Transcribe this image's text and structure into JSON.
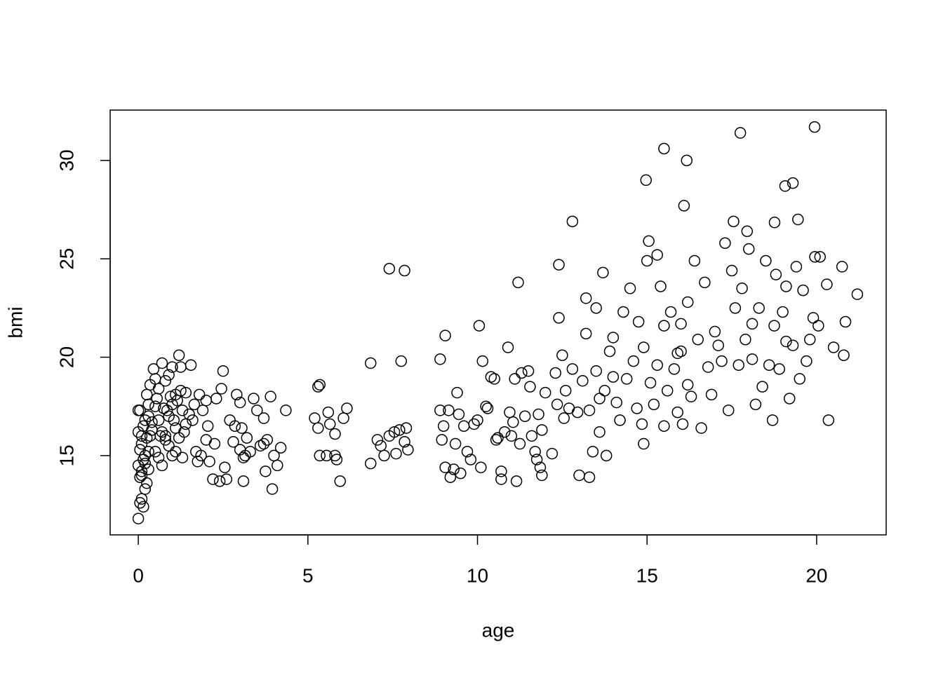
{
  "chart_data": {
    "type": "scatter",
    "x_label": "age",
    "y_label": "bmi",
    "color": "#000000",
    "xlim": [
      -0.83,
      22.05
    ],
    "ylim": [
      10.97,
      32.56
    ],
    "xticks": [
      0,
      5,
      10,
      15,
      20
    ],
    "yticks": [
      15,
      20,
      25,
      30
    ],
    "x": [
      0.0,
      0.05,
      0.1,
      0.15,
      0.2,
      0.25,
      0.05,
      0.1,
      0.0,
      0.15,
      0.2,
      0.05,
      0.1,
      0.25,
      0.0,
      0.15,
      0.2,
      0.05,
      0.3,
      0.25,
      0.35,
      0.1,
      0.3,
      0.2,
      0.3,
      0.35,
      0.4,
      0.3,
      0.0,
      0.1,
      0.45,
      0.5,
      0.6,
      0.7,
      0.8,
      0.9,
      1.0,
      1.1,
      1.2,
      1.25,
      0.5,
      0.6,
      0.7,
      0.8,
      0.9,
      1.0,
      1.1,
      1.2,
      1.3,
      1.4,
      0.5,
      0.6,
      0.7,
      0.8,
      0.9,
      1.0,
      1.1,
      1.3,
      1.4,
      1.5,
      0.4,
      0.55,
      0.75,
      0.95,
      1.15,
      1.35,
      0.65,
      0.85,
      1.05,
      1.25,
      1.55,
      1.6,
      1.7,
      1.8,
      1.9,
      2.0,
      2.1,
      2.2,
      2.3,
      2.4,
      2.5,
      2.45,
      2.55,
      2.6,
      2.7,
      2.8,
      2.9,
      3.0,
      3.05,
      3.1,
      3.15,
      3.2,
      3.3,
      3.4,
      3.5,
      3.6,
      3.7,
      3.75,
      3.8,
      3.9,
      3.95,
      4.0,
      4.1,
      4.2,
      4.35,
      1.65,
      1.85,
      2.05,
      2.25,
      2.85,
      3.0,
      3.1,
      3.7,
      2.0,
      1.75,
      5.2,
      5.3,
      5.35,
      5.3,
      5.35,
      5.55,
      5.6,
      5.65,
      5.8,
      5.8,
      5.85,
      5.95,
      6.05,
      6.15,
      6.85,
      6.85,
      7.05,
      7.15,
      7.25,
      7.4,
      7.4,
      7.55,
      7.6,
      7.7,
      7.75,
      7.85,
      7.85,
      7.9,
      7.95,
      8.9,
      8.9,
      8.95,
      9.0,
      9.05,
      9.05,
      9.15,
      9.2,
      9.3,
      9.35,
      9.4,
      9.45,
      9.5,
      9.6,
      9.7,
      9.8,
      9.9,
      10.0,
      10.05,
      10.1,
      10.15,
      10.3,
      10.4,
      10.5,
      10.55,
      10.6,
      10.7,
      10.7,
      10.8,
      10.9,
      10.95,
      11.0,
      11.1,
      11.15,
      11.2,
      11.25,
      11.3,
      11.4,
      11.5,
      11.55,
      11.6,
      11.7,
      11.8,
      11.85,
      11.9,
      12.0,
      11.9,
      11.75,
      11.05,
      10.25,
      12.2,
      12.3,
      12.35,
      12.4,
      12.4,
      12.5,
      12.55,
      12.6,
      12.7,
      12.8,
      12.8,
      12.95,
      13.0,
      13.1,
      13.2,
      13.2,
      13.3,
      13.4,
      13.5,
      13.5,
      13.6,
      13.7,
      13.75,
      13.8,
      13.9,
      14.0,
      14.1,
      14.2,
      14.3,
      14.4,
      14.5,
      14.6,
      14.7,
      14.75,
      14.85,
      14.9,
      14.9,
      13.3,
      13.6,
      14.0,
      15.0,
      15.05,
      15.1,
      15.2,
      15.3,
      15.4,
      15.5,
      15.5,
      15.6,
      15.7,
      15.8,
      15.9,
      16.0,
      16.05,
      16.2,
      16.3,
      16.4,
      16.5,
      16.6,
      16.7,
      16.8,
      16.9,
      17.0,
      17.1,
      17.3,
      17.4,
      17.5,
      17.6,
      17.7,
      17.8,
      17.9,
      15.3,
      15.9,
      16.2,
      17.2,
      16.0,
      18.0,
      18.1,
      18.2,
      18.3,
      18.4,
      18.5,
      18.6,
      18.7,
      18.75,
      18.8,
      18.9,
      19.0,
      19.1,
      19.1,
      19.2,
      19.3,
      19.4,
      19.5,
      19.6,
      19.7,
      19.8,
      19.9,
      19.95,
      20.05,
      20.1,
      20.3,
      20.35,
      20.5,
      20.75,
      20.8,
      20.85,
      21.2,
      19.45,
      18.1,
      17.95,
      19.94,
      17.75,
      15.5,
      14.97,
      16.17,
      16.09,
      19.3,
      19.07,
      18.76,
      17.55
    ],
    "values": [
      11.8,
      12.6,
      12.8,
      12.4,
      13.3,
      13.6,
      13.9,
      14.2,
      14.5,
      14.8,
      15.0,
      15.3,
      15.6,
      15.9,
      16.2,
      16.5,
      16.8,
      17.3,
      17.6,
      18.1,
      18.6,
      14.0,
      14.3,
      14.6,
      15.2,
      16.0,
      16.7,
      17.0,
      17.3,
      16.0,
      19.4,
      18.9,
      18.4,
      19.7,
      18.8,
      19.1,
      19.5,
      18.1,
      20.1,
      19.5,
      17.5,
      16.8,
      16.2,
      15.8,
      17.0,
      17.6,
      16.4,
      15.9,
      17.3,
      16.6,
      15.2,
      14.9,
      14.5,
      16.0,
      15.5,
      15.0,
      15.2,
      14.9,
      18.2,
      17.1,
      16.3,
      17.9,
      17.4,
      18.0,
      17.8,
      16.2,
      16.0,
      17.3,
      16.8,
      18.3,
      19.6,
      16.8,
      15.2,
      18.1,
      17.3,
      15.8,
      14.7,
      13.8,
      17.9,
      13.7,
      19.3,
      18.4,
      14.4,
      13.8,
      16.8,
      15.7,
      18.1,
      17.7,
      16.4,
      13.7,
      15.0,
      15.9,
      15.2,
      17.9,
      17.3,
      15.5,
      16.9,
      14.2,
      15.8,
      18.0,
      13.3,
      15.0,
      14.5,
      15.4,
      17.3,
      17.6,
      15.0,
      16.5,
      15.6,
      16.5,
      15.3,
      14.9,
      15.6,
      17.8,
      14.7,
      16.9,
      18.5,
      18.6,
      16.4,
      15.0,
      15.0,
      17.2,
      16.6,
      16.1,
      15.0,
      14.8,
      13.7,
      16.9,
      17.4,
      14.6,
      19.7,
      15.8,
      15.5,
      15.0,
      24.5,
      16.0,
      16.2,
      15.1,
      16.3,
      19.8,
      24.4,
      15.7,
      16.4,
      15.3,
      19.9,
      17.3,
      15.8,
      16.5,
      21.1,
      14.4,
      17.3,
      13.9,
      14.3,
      15.6,
      18.2,
      17.1,
      14.1,
      16.5,
      15.2,
      14.8,
      16.6,
      16.8,
      21.6,
      14.4,
      19.8,
      17.4,
      19.0,
      18.9,
      15.8,
      15.9,
      14.2,
      13.8,
      16.2,
      20.5,
      17.2,
      16.0,
      18.9,
      13.7,
      23.8,
      15.6,
      19.2,
      17.0,
      19.3,
      18.5,
      16.0,
      15.2,
      17.1,
      14.4,
      14.0,
      18.2,
      16.3,
      14.8,
      16.7,
      17.5,
      15.1,
      19.2,
      17.6,
      22.0,
      24.7,
      20.1,
      16.9,
      18.3,
      17.4,
      26.9,
      19.4,
      17.2,
      14.0,
      18.8,
      21.2,
      23.0,
      17.3,
      15.2,
      22.5,
      19.3,
      16.2,
      24.3,
      18.3,
      15.0,
      20.3,
      19.0,
      17.7,
      16.8,
      22.3,
      18.9,
      23.5,
      19.8,
      17.4,
      21.8,
      16.6,
      20.5,
      15.6,
      13.9,
      17.9,
      21.0,
      24.9,
      25.9,
      18.7,
      17.6,
      25.2,
      23.6,
      16.5,
      21.6,
      18.3,
      22.3,
      19.4,
      17.2,
      20.3,
      16.6,
      22.8,
      18.0,
      24.9,
      20.9,
      16.4,
      23.8,
      19.5,
      18.1,
      21.3,
      20.6,
      25.8,
      17.3,
      24.4,
      22.5,
      19.6,
      23.5,
      20.9,
      19.6,
      20.2,
      18.6,
      19.8,
      21.7,
      25.5,
      21.7,
      17.6,
      22.5,
      18.5,
      24.9,
      19.6,
      16.8,
      21.6,
      24.2,
      19.4,
      22.3,
      23.6,
      20.8,
      17.9,
      20.6,
      24.6,
      18.9,
      23.4,
      19.8,
      20.9,
      22.0,
      25.1,
      21.6,
      25.1,
      23.7,
      16.8,
      20.5,
      24.6,
      20.1,
      21.8,
      23.2,
      27.0,
      19.9,
      26.4,
      31.7,
      31.4,
      30.6,
      29.0,
      30.0,
      27.7,
      28.85,
      28.7,
      26.85,
      26.9
    ]
  }
}
